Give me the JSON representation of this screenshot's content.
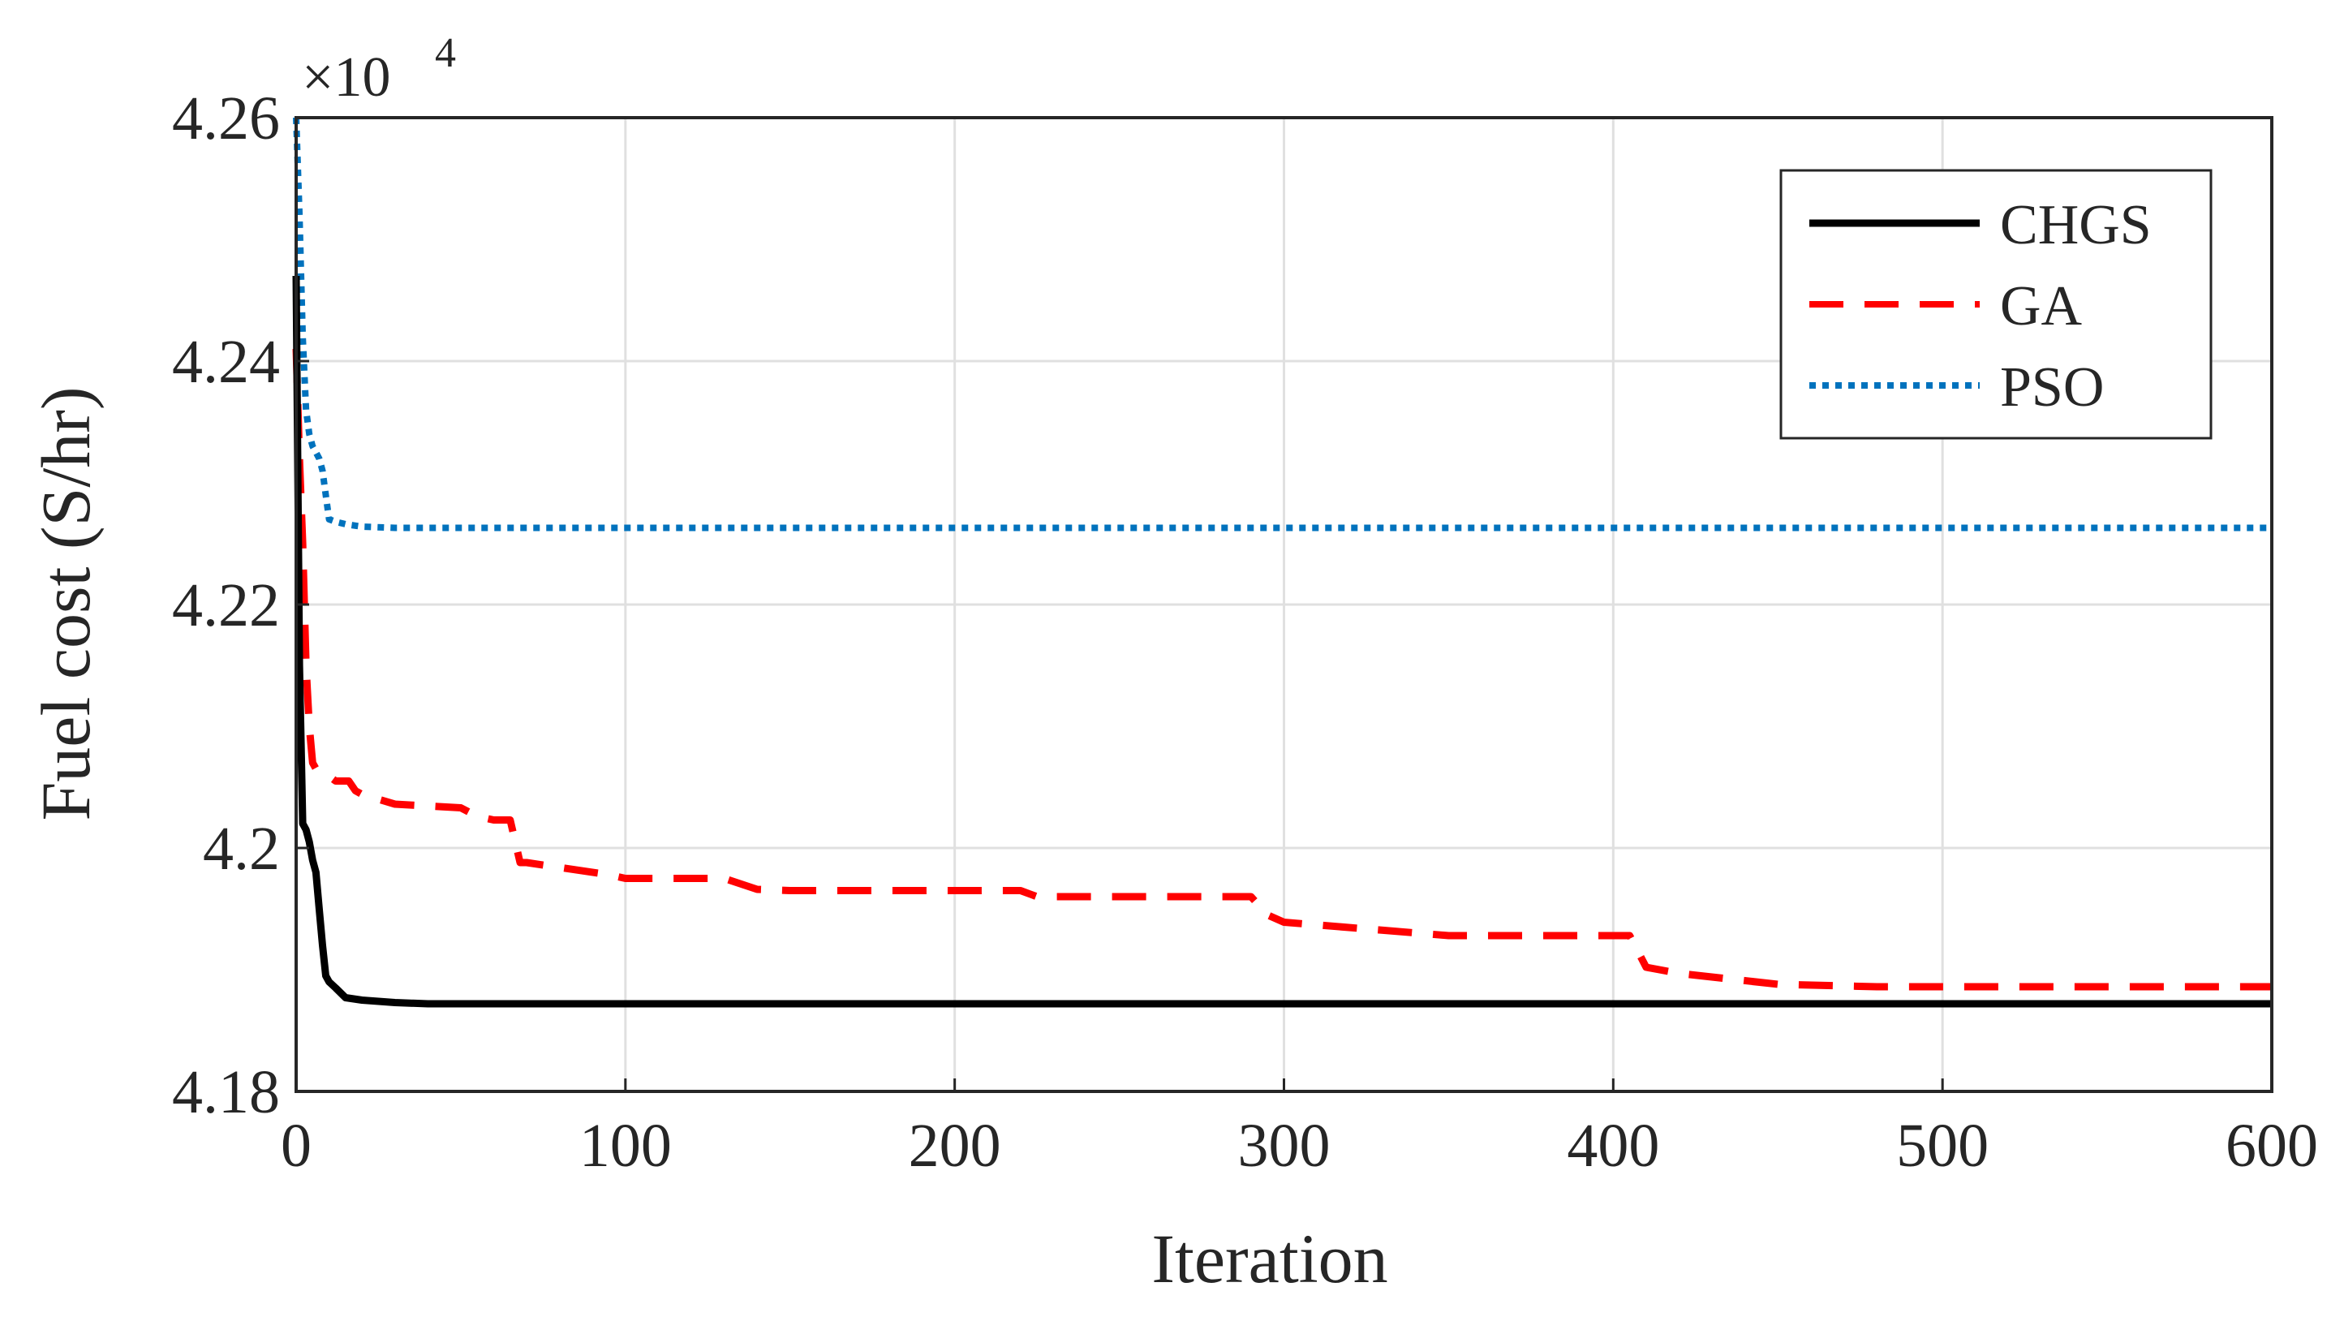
{
  "chart_data": {
    "type": "line",
    "title": "",
    "xlabel": "Iteration",
    "ylabel": "Fuel cost (S/hr)",
    "y_multiplier": {
      "base": "×10",
      "exponent": "4"
    },
    "xlim": [
      0,
      600
    ],
    "ylim": [
      4.18,
      4.26
    ],
    "x_ticks": [
      0,
      100,
      200,
      300,
      400,
      500,
      600
    ],
    "x_tick_labels": [
      "0",
      "100",
      "200",
      "300",
      "400",
      "500",
      "600"
    ],
    "y_ticks": [
      4.18,
      4.2,
      4.22,
      4.24,
      4.26
    ],
    "y_tick_labels": [
      "4.18",
      "4.2",
      "4.22",
      "4.24",
      "4.26"
    ],
    "grid": true,
    "legend_position": "top-right",
    "series": [
      {
        "name": "CHGS",
        "color": "#000000",
        "style": "solid",
        "x": [
          0,
          1,
          2,
          3,
          4,
          5,
          6,
          7,
          8,
          9,
          10,
          12,
          15,
          20,
          30,
          40,
          60,
          100,
          200,
          300,
          400,
          500,
          600
        ],
        "y": [
          4.247,
          4.215,
          4.202,
          4.2015,
          4.2005,
          4.199,
          4.198,
          4.195,
          4.192,
          4.1895,
          4.189,
          4.1885,
          4.1877,
          4.1875,
          4.1873,
          4.1872,
          4.1872,
          4.1872,
          4.1872,
          4.1872,
          4.1872,
          4.1872,
          4.1872
        ]
      },
      {
        "name": "GA",
        "color": "#ff0000",
        "style": "dashed",
        "x": [
          0,
          1,
          2,
          3,
          4,
          5,
          6,
          8,
          12,
          16,
          18,
          20,
          30,
          50,
          55,
          60,
          65,
          68,
          70,
          80,
          95,
          100,
          130,
          140,
          150,
          200,
          220,
          225,
          260,
          290,
          295,
          300,
          350,
          405,
          410,
          420,
          450,
          480,
          500,
          600
        ],
        "y": [
          4.241,
          4.232,
          4.225,
          4.215,
          4.21,
          4.207,
          4.2065,
          4.2063,
          4.2055,
          4.2055,
          4.2047,
          4.2044,
          4.2036,
          4.2033,
          4.2026,
          4.2023,
          4.2023,
          4.1988,
          4.1988,
          4.1984,
          4.1978,
          4.1975,
          4.1975,
          4.1966,
          4.1965,
          4.1965,
          4.1965,
          4.196,
          4.196,
          4.196,
          4.1945,
          4.1939,
          4.1928,
          4.1928,
          4.1902,
          4.1897,
          4.1888,
          4.1886,
          4.1886,
          4.1886
        ]
      },
      {
        "name": "PSO",
        "color": "#0072bd",
        "style": "dotted",
        "x": [
          0,
          1,
          2,
          3,
          4,
          5,
          6,
          7,
          8,
          9,
          10,
          12,
          15,
          20,
          30,
          50,
          100,
          200,
          300,
          400,
          500,
          600
        ],
        "y": [
          4.26,
          4.252,
          4.242,
          4.236,
          4.234,
          4.233,
          4.2325,
          4.232,
          4.231,
          4.229,
          4.227,
          4.2268,
          4.2266,
          4.2264,
          4.2263,
          4.2263,
          4.2263,
          4.2263,
          4.2263,
          4.2263,
          4.2263,
          4.2263
        ]
      }
    ]
  }
}
